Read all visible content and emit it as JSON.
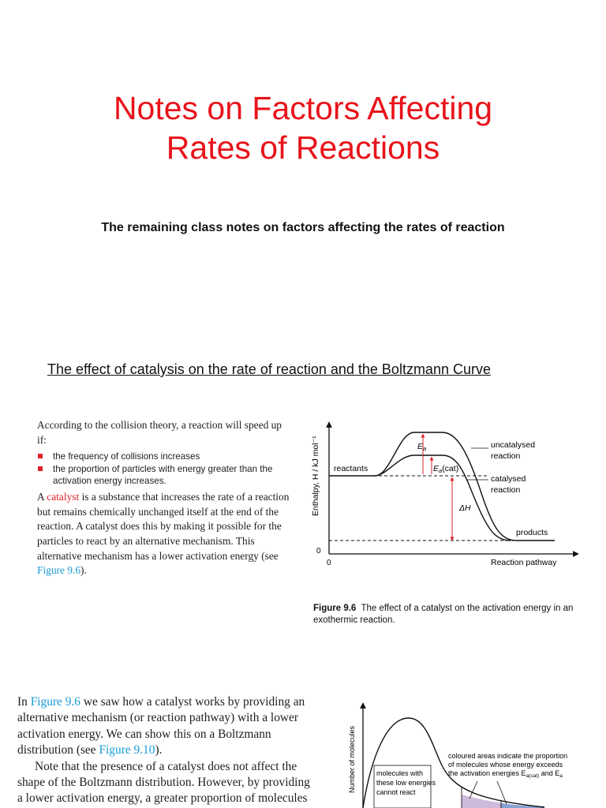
{
  "title": {
    "line1": "Notes on Factors Affecting",
    "line2": "Rates of Reactions"
  },
  "subtitle": "The remaining class notes on factors affecting the rates of reaction",
  "section_heading": "The effect of catalysis on the rate of reaction and the Boltzmann Curve",
  "collision_text": {
    "intro": "According to the collision theory, a reaction will speed up if:",
    "bullets": [
      "the frequency of collisions increases",
      "the proportion of particles with energy greater than the activation energy increases."
    ],
    "catalyst_pre": "A",
    "catalyst_word": "catalyst",
    "catalyst_post": "is a substance that increases the rate of a reaction but remains chemically unchanged itself at the end of the reaction. A catalyst does this by making it possible for the particles to react by an alternative mechanism. This alternative mechanism has a lower activation energy (see",
    "figure_ref": "Figure 9.6",
    "end": ")."
  },
  "figure_9_6": {
    "y_axis": "Enthalpy, H / kJ mol⁻¹",
    "x_axis": "Reaction pathway",
    "origin_y": "0",
    "origin_x": "0",
    "reactants": "reactants",
    "products": "products",
    "uncatalysed": [
      "uncatalysed",
      "reaction"
    ],
    "catalysed": [
      "catalysed",
      "reaction"
    ],
    "ea": "E",
    "ea_sub": "a",
    "ea_cat": "E",
    "ea_cat_sub": "a",
    "ea_cat_suffix": "(cat)",
    "delta_h": "ΔH",
    "caption_label": "Figure 9.6",
    "caption_text": "The effect of a catalyst on the activation energy in an exothermic reaction."
  },
  "boltzmann_text": {
    "p1_pre": "In",
    "p1_ref1": "Figure 9.6",
    "p1_mid": "we saw how a catalyst works by providing an alternative mechanism (or reaction pathway) with a lower activation energy. We can show this on a Boltzmann distribution (see",
    "p1_ref2": "Figure 9.10",
    "p1_end": ").",
    "p2": "Note that the presence of a catalyst does not affect the shape of the Boltzmann distribution. However, by providing a lower activation energy, a greater proportion of molecules"
  },
  "figure_9_10": {
    "y_axis": "Number of molecules",
    "low_energy_note": [
      "molecules with",
      "these low energies",
      "cannot react"
    ],
    "coloured_note": [
      "coloured areas indicate the proportion",
      "of molecules whose energy exceeds",
      "the activation energies E"
    ],
    "coloured_sub": "a(cat)",
    "coloured_and": "and E",
    "coloured_sub2": "a"
  },
  "colors": {
    "title": "#e8131a",
    "keyword": "#e3202a",
    "link": "#1a9ad6"
  }
}
